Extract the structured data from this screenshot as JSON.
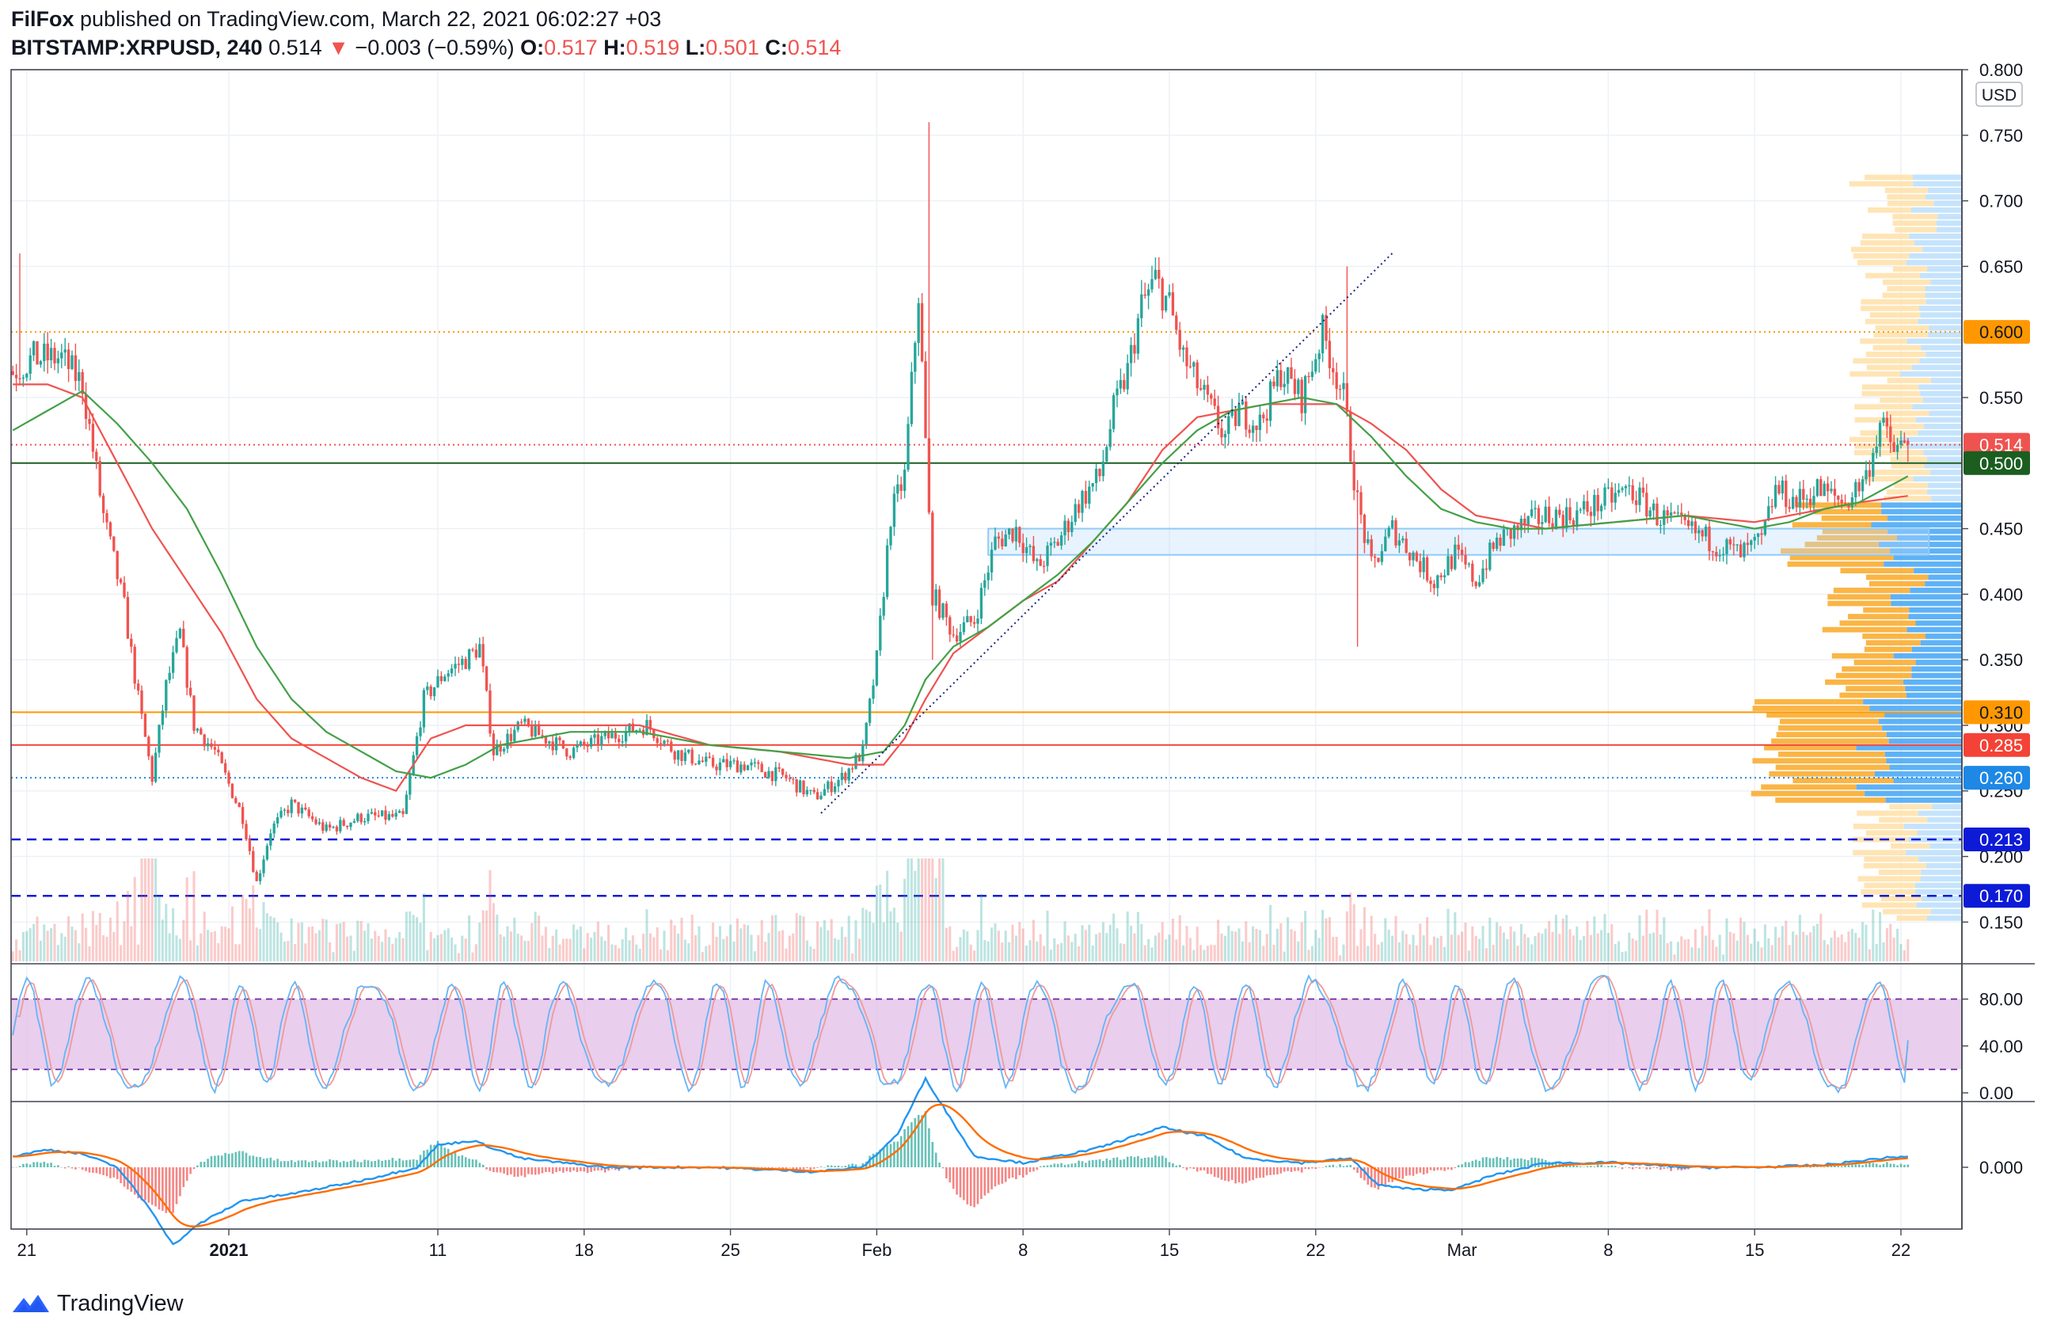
{
  "header": {
    "publisher": "FilFox",
    "published_text": "published on TradingView.com, March 22, 2021 06:02:27 +03",
    "symbol": "BITSTAMP:XRPUSD, 240",
    "last": "0.514",
    "change_arrow": "▼",
    "change": "−0.003 (−0.59%)",
    "o_label": "O:",
    "o_value": "0.517",
    "h_label": "H:",
    "h_value": "0.519",
    "l_label": "L:",
    "l_value": "0.501",
    "c_label": "C:",
    "c_value": "0.514"
  },
  "footer": {
    "brand": "TradingView"
  },
  "colors": {
    "up": "#26a69a",
    "down": "#ef5350",
    "ma_red": "#ef5350",
    "ma_green": "#43a047",
    "stoch_band": "#e1bee7",
    "macd_line": "#2196f3",
    "signal_line": "#ff6d00",
    "orange_level": "#ff9800",
    "red_level": "#f44336",
    "blue_level": "#2962ff"
  },
  "chart_data": {
    "type": "candlestick",
    "currency_label": "USD",
    "x_ticks": [
      {
        "label": "21",
        "i": 4
      },
      {
        "label": "2021",
        "i": 62
      },
      {
        "label": "11",
        "i": 122
      },
      {
        "label": "18",
        "i": 164
      },
      {
        "label": "25",
        "i": 206
      },
      {
        "label": "Feb",
        "i": 248
      },
      {
        "label": "8",
        "i": 290
      },
      {
        "label": "15",
        "i": 332
      },
      {
        "label": "22",
        "i": 374
      },
      {
        "label": "Mar",
        "i": 416
      },
      {
        "label": "8",
        "i": 458
      },
      {
        "label": "15",
        "i": 500
      },
      {
        "label": "22",
        "i": 542
      }
    ],
    "y_ticks": [
      "0.800",
      "0.750",
      "0.700",
      "0.650",
      "0.550",
      "0.450",
      "0.400",
      "0.350",
      "0.300",
      "0.250",
      "0.200",
      "0.150"
    ],
    "ylim": [
      0.12,
      0.8
    ],
    "levels": [
      {
        "label": "0.600",
        "value": 0.6,
        "color": "#ff9800",
        "style": "dotted"
      },
      {
        "label": "0.514",
        "value": 0.514,
        "color": "#ef5350",
        "style": "dotted"
      },
      {
        "label": "0.500",
        "value": 0.5,
        "color": "#1b5e20",
        "style": "solid"
      },
      {
        "label": "0.310",
        "value": 0.31,
        "color": "#ff9800",
        "style": "solid"
      },
      {
        "label": "0.285",
        "value": 0.285,
        "color": "#f44336",
        "style": "solid"
      },
      {
        "label": "0.260",
        "value": 0.26,
        "color": "#1e88e5",
        "style": "dotted"
      },
      {
        "label": "0.213",
        "value": 0.213,
        "color": "#0d1bd6",
        "style": "dashed"
      },
      {
        "label": "0.170",
        "value": 0.17,
        "color": "#0d1bd6",
        "style": "dashed"
      }
    ],
    "support_zone": {
      "from": 0.43,
      "to": 0.45,
      "start_i": 280,
      "end_i": 550
    },
    "trendline": {
      "i0": 232,
      "p0": 0.233,
      "i1": 396,
      "p1": 0.66
    },
    "anchors": [
      [
        0,
        0.57
      ],
      [
        6,
        0.58
      ],
      [
        14,
        0.58
      ],
      [
        20,
        0.56
      ],
      [
        26,
        0.46
      ],
      [
        32,
        0.39
      ],
      [
        36,
        0.32
      ],
      [
        40,
        0.26
      ],
      [
        44,
        0.33
      ],
      [
        48,
        0.37
      ],
      [
        52,
        0.3
      ],
      [
        58,
        0.28
      ],
      [
        66,
        0.23
      ],
      [
        70,
        0.18
      ],
      [
        74,
        0.22
      ],
      [
        80,
        0.24
      ],
      [
        90,
        0.22
      ],
      [
        100,
        0.23
      ],
      [
        112,
        0.23
      ],
      [
        118,
        0.32
      ],
      [
        124,
        0.34
      ],
      [
        130,
        0.35
      ],
      [
        134,
        0.36
      ],
      [
        138,
        0.28
      ],
      [
        146,
        0.3
      ],
      [
        160,
        0.28
      ],
      [
        170,
        0.29
      ],
      [
        182,
        0.3
      ],
      [
        190,
        0.28
      ],
      [
        200,
        0.27
      ],
      [
        210,
        0.27
      ],
      [
        222,
        0.26
      ],
      [
        230,
        0.245
      ],
      [
        238,
        0.26
      ],
      [
        244,
        0.28
      ],
      [
        248,
        0.35
      ],
      [
        252,
        0.46
      ],
      [
        256,
        0.49
      ],
      [
        260,
        0.63
      ],
      [
        264,
        0.4
      ],
      [
        270,
        0.37
      ],
      [
        276,
        0.38
      ],
      [
        282,
        0.44
      ],
      [
        288,
        0.45
      ],
      [
        294,
        0.42
      ],
      [
        300,
        0.44
      ],
      [
        306,
        0.47
      ],
      [
        312,
        0.49
      ],
      [
        316,
        0.54
      ],
      [
        320,
        0.57
      ],
      [
        324,
        0.62
      ],
      [
        328,
        0.64
      ],
      [
        332,
        0.62
      ],
      [
        336,
        0.58
      ],
      [
        342,
        0.55
      ],
      [
        348,
        0.52
      ],
      [
        352,
        0.54
      ],
      [
        358,
        0.53
      ],
      [
        364,
        0.57
      ],
      [
        370,
        0.55
      ],
      [
        376,
        0.6
      ],
      [
        382,
        0.55
      ],
      [
        386,
        0.47
      ],
      [
        390,
        0.42
      ],
      [
        396,
        0.45
      ],
      [
        402,
        0.43
      ],
      [
        408,
        0.41
      ],
      [
        414,
        0.43
      ],
      [
        420,
        0.41
      ],
      [
        426,
        0.44
      ],
      [
        432,
        0.45
      ],
      [
        440,
        0.46
      ],
      [
        448,
        0.46
      ],
      [
        456,
        0.47
      ],
      [
        464,
        0.48
      ],
      [
        472,
        0.46
      ],
      [
        480,
        0.45
      ],
      [
        488,
        0.44
      ],
      [
        496,
        0.43
      ],
      [
        502,
        0.44
      ],
      [
        506,
        0.48
      ],
      [
        512,
        0.47
      ],
      [
        518,
        0.48
      ],
      [
        526,
        0.47
      ],
      [
        532,
        0.49
      ],
      [
        536,
        0.53
      ],
      [
        540,
        0.51
      ],
      [
        544,
        0.514
      ]
    ],
    "spikes": [
      {
        "i": 2,
        "high": 0.66
      },
      {
        "i": 263,
        "high": 0.76
      },
      {
        "i": 264,
        "low": 0.35
      },
      {
        "i": 386,
        "low": 0.36
      },
      {
        "i": 383,
        "high": 0.65
      }
    ],
    "ma_slow": [
      [
        0,
        0.56
      ],
      [
        10,
        0.56
      ],
      [
        20,
        0.55
      ],
      [
        30,
        0.5
      ],
      [
        40,
        0.45
      ],
      [
        50,
        0.41
      ],
      [
        60,
        0.37
      ],
      [
        70,
        0.32
      ],
      [
        80,
        0.29
      ],
      [
        90,
        0.275
      ],
      [
        100,
        0.26
      ],
      [
        110,
        0.25
      ],
      [
        120,
        0.29
      ],
      [
        130,
        0.3
      ],
      [
        140,
        0.3
      ],
      [
        160,
        0.3
      ],
      [
        180,
        0.3
      ],
      [
        200,
        0.285
      ],
      [
        220,
        0.28
      ],
      [
        240,
        0.27
      ],
      [
        250,
        0.27
      ],
      [
        256,
        0.29
      ],
      [
        262,
        0.32
      ],
      [
        270,
        0.355
      ],
      [
        280,
        0.375
      ],
      [
        290,
        0.395
      ],
      [
        300,
        0.41
      ],
      [
        310,
        0.44
      ],
      [
        320,
        0.47
      ],
      [
        330,
        0.51
      ],
      [
        340,
        0.535
      ],
      [
        350,
        0.54
      ],
      [
        360,
        0.545
      ],
      [
        370,
        0.545
      ],
      [
        380,
        0.545
      ],
      [
        390,
        0.53
      ],
      [
        400,
        0.51
      ],
      [
        410,
        0.48
      ],
      [
        420,
        0.46
      ],
      [
        430,
        0.455
      ],
      [
        440,
        0.45
      ],
      [
        460,
        0.455
      ],
      [
        480,
        0.46
      ],
      [
        500,
        0.455
      ],
      [
        510,
        0.46
      ],
      [
        520,
        0.465
      ],
      [
        530,
        0.47
      ],
      [
        544,
        0.475
      ]
    ],
    "ma_fast": [
      [
        0,
        0.525
      ],
      [
        10,
        0.54
      ],
      [
        20,
        0.555
      ],
      [
        30,
        0.53
      ],
      [
        40,
        0.5
      ],
      [
        50,
        0.465
      ],
      [
        60,
        0.415
      ],
      [
        70,
        0.36
      ],
      [
        80,
        0.32
      ],
      [
        90,
        0.295
      ],
      [
        100,
        0.28
      ],
      [
        110,
        0.265
      ],
      [
        120,
        0.26
      ],
      [
        130,
        0.27
      ],
      [
        140,
        0.285
      ],
      [
        160,
        0.295
      ],
      [
        180,
        0.295
      ],
      [
        200,
        0.285
      ],
      [
        220,
        0.28
      ],
      [
        240,
        0.275
      ],
      [
        250,
        0.28
      ],
      [
        256,
        0.3
      ],
      [
        262,
        0.335
      ],
      [
        270,
        0.36
      ],
      [
        280,
        0.375
      ],
      [
        290,
        0.395
      ],
      [
        300,
        0.415
      ],
      [
        310,
        0.44
      ],
      [
        320,
        0.47
      ],
      [
        330,
        0.5
      ],
      [
        340,
        0.525
      ],
      [
        350,
        0.54
      ],
      [
        360,
        0.545
      ],
      [
        370,
        0.55
      ],
      [
        380,
        0.545
      ],
      [
        390,
        0.52
      ],
      [
        400,
        0.49
      ],
      [
        410,
        0.465
      ],
      [
        420,
        0.455
      ],
      [
        430,
        0.45
      ],
      [
        440,
        0.45
      ],
      [
        460,
        0.455
      ],
      [
        480,
        0.46
      ],
      [
        500,
        0.45
      ],
      [
        510,
        0.455
      ],
      [
        520,
        0.465
      ],
      [
        530,
        0.47
      ],
      [
        544,
        0.49
      ]
    ],
    "volume_profile": {
      "from": 0.15,
      "to": 0.72
    },
    "stoch_rsi": {
      "y_ticks": [
        "80.00",
        "40.00",
        "0.00"
      ],
      "band": [
        20,
        80
      ],
      "last_k": 45,
      "last_d": 40
    },
    "macd": {
      "y_ticks": [
        "0.000"
      ],
      "anchors": [
        [
          0,
          0.005
        ],
        [
          10,
          0.008
        ],
        [
          20,
          0.006
        ],
        [
          30,
          0.0
        ],
        [
          40,
          -0.02
        ],
        [
          46,
          -0.035
        ],
        [
          54,
          -0.025
        ],
        [
          66,
          -0.015
        ],
        [
          80,
          -0.012
        ],
        [
          100,
          -0.006
        ],
        [
          116,
          0.0
        ],
        [
          122,
          0.01
        ],
        [
          132,
          0.012
        ],
        [
          146,
          0.004
        ],
        [
          170,
          0.0
        ],
        [
          200,
          0.0
        ],
        [
          230,
          -0.002
        ],
        [
          244,
          0.0
        ],
        [
          254,
          0.015
        ],
        [
          262,
          0.04
        ],
        [
          266,
          0.03
        ],
        [
          276,
          0.005
        ],
        [
          290,
          0.002
        ],
        [
          310,
          0.008
        ],
        [
          330,
          0.018
        ],
        [
          342,
          0.014
        ],
        [
          354,
          0.004
        ],
        [
          370,
          0.002
        ],
        [
          384,
          0.004
        ],
        [
          392,
          -0.008
        ],
        [
          402,
          -0.01
        ],
        [
          414,
          -0.01
        ],
        [
          424,
          -0.004
        ],
        [
          440,
          0.002
        ],
        [
          460,
          0.002
        ],
        [
          480,
          0.0
        ],
        [
          500,
          0.0
        ],
        [
          520,
          0.001
        ],
        [
          536,
          0.004
        ],
        [
          544,
          0.005
        ]
      ]
    }
  }
}
